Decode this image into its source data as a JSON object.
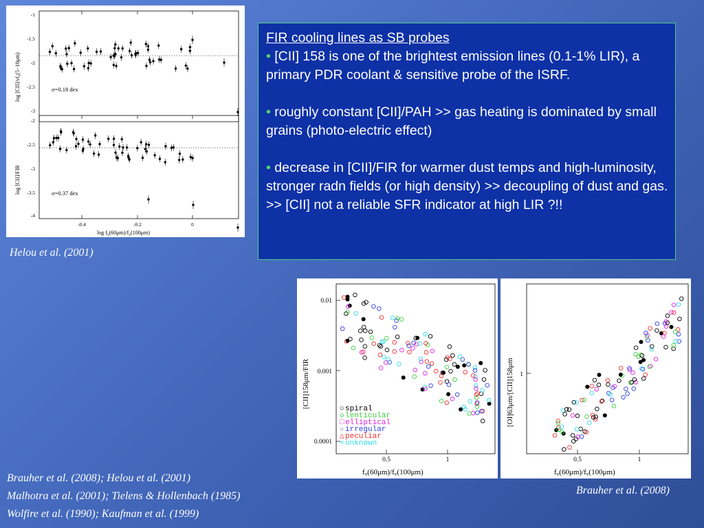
{
  "textbox": {
    "heading": "FIR cooling lines as SB probes",
    "bullets": [
      "[CII] 158 is one of the brightest emission lines (0.1-1% LIR), a primary PDR coolant & sensitive probe of the ISRF.",
      "roughly constant [CII]/PAH >> gas heating is dominated by small grains (photo-electric effect)",
      "decrease in [CII]/FIR for warmer dust temps and high-luminosity, stronger radn fields (or high density) >> decoupling of dust and gas. >> [CII] not a reliable SFR indicator at high LIR ?!!"
    ]
  },
  "captions": {
    "helou": "Helou et al. (2001)",
    "brauher": "Brauher et al. (2008)"
  },
  "references": [
    "Brauher et al. (2008); Helou et al. (2001)",
    "Malhotra et al. (2001); Tielens & Hollenbach (1985)",
    "Wolfire et al. (1990); Kaufman et al. (1999)"
  ],
  "plot1": {
    "top_ylabel": "log [CII]/νf",
    "top_ylabel_sub": "ν",
    "top_ylabel_tail": "(5−10μm)",
    "bottom_ylabel": "log [CII]/FIR",
    "xlabel": "log f",
    "xlabel_mid": "(60μm)/f",
    "xlabel_tail": "(100μm)",
    "xlabel_sub": "ν",
    "top_sigma": "σ=0.18 dex",
    "bottom_sigma": "σ=0.37 dex",
    "top_yticks": [
      "-1",
      "-1.5",
      "-2",
      "-2.5",
      "-3"
    ],
    "bottom_yticks": [
      "-2",
      "-2.5",
      "-3",
      "-3.5",
      "-4"
    ],
    "xticks": [
      "-0.4",
      "-0.2",
      "0"
    ]
  },
  "plot2": {
    "ylabel": "[CII]158μm/FIR",
    "xlabel": "f",
    "xlabel_mid": "(60μm)/f",
    "xlabel_tail": "(100μm)",
    "xlabel_sub": "ν",
    "yticks": [
      "0.01",
      "0.001",
      "0.0001"
    ],
    "xticks": [
      "0.5",
      "1"
    ],
    "legend": [
      {
        "label": "spiral",
        "color": "#000000",
        "symbol": "○"
      },
      {
        "label": "lenticular",
        "color": "#3ccf3c",
        "symbol": "◇"
      },
      {
        "label": "elliptical",
        "color": "#e020e0",
        "symbol": "□"
      },
      {
        "label": "irregular",
        "color": "#2c3ee0",
        "symbol": "☆"
      },
      {
        "label": "peculiar",
        "color": "#f03030",
        "symbol": "△"
      },
      {
        "label": "unknown",
        "color": "#30d8e8",
        "symbol": "×"
      }
    ]
  },
  "plot3": {
    "ylabel": "[OI]63μm/[CII]158μm",
    "xlabel": "f",
    "xlabel_mid": "(60μm)/f",
    "xlabel_tail": "(100μm)",
    "xlabel_sub": "ν",
    "yticks": [
      "1"
    ],
    "xticks": [
      "0.5",
      "1"
    ]
  }
}
